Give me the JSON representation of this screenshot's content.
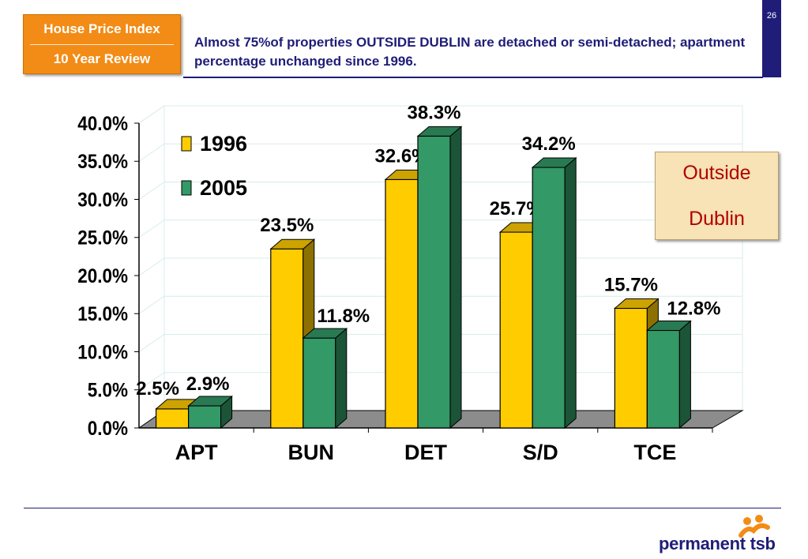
{
  "header": {
    "badge_line1": "House Price Index",
    "badge_line2": "10 Year Review",
    "headline": "Almost 75%of properties OUTSIDE DUBLIN are detached or semi-detached; apartment percentage unchanged since 1996.",
    "page_number": "26"
  },
  "callout": {
    "line1": "Outside",
    "line2": "Dublin"
  },
  "brand": {
    "name": "permanent tsb"
  },
  "colors": {
    "series_1996": "#ffcc00",
    "series_2005": "#339966",
    "floor": "#8c8c8c",
    "accent": "#1f1d78"
  },
  "chart_data": {
    "type": "bar",
    "categories": [
      "APT",
      "BUN",
      "DET",
      "S/D",
      "TCE"
    ],
    "series": [
      {
        "name": "1996",
        "values": [
          2.5,
          23.5,
          32.6,
          25.7,
          15.7
        ],
        "labels": [
          "2.5%",
          "23.5%",
          "32.6%",
          "25.7%",
          "15.7%"
        ]
      },
      {
        "name": "2005",
        "values": [
          2.9,
          11.8,
          38.3,
          34.2,
          12.8
        ],
        "labels": [
          "2.9%",
          "11.8%",
          "38.3%",
          "34.2%",
          "12.8%"
        ]
      }
    ],
    "ylim": [
      0,
      40
    ],
    "yticks": [
      "0.0%",
      "5.0%",
      "10.0%",
      "15.0%",
      "20.0%",
      "25.0%",
      "30.0%",
      "35.0%",
      "40.0%"
    ],
    "legend": "top-left",
    "grid": true,
    "style": "3d"
  }
}
